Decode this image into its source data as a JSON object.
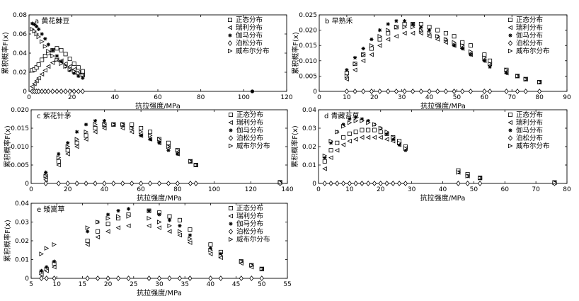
{
  "chart_data": [
    {
      "type": "scatter",
      "panel": "a",
      "title": "黄花棘豆",
      "xlabel": "抗拉强度/MPa",
      "ylabel": "累积概率F(x)",
      "xlim": [
        0,
        120
      ],
      "ylim": [
        0,
        0.08
      ],
      "xticks": [
        "0",
        "20",
        "40",
        "60",
        "80",
        "100",
        "120"
      ],
      "yticks": [
        "0",
        "0.02",
        "0.04",
        "0.06",
        "0.08"
      ],
      "x": [
        1.5,
        2.5,
        3.5,
        4.5,
        6,
        7.5,
        9,
        11,
        13,
        15,
        17,
        19,
        21,
        23,
        25
      ],
      "series": [
        {
          "name": "正态分布",
          "marker": "square",
          "values": [
            0.022,
            0.023,
            0.025,
            0.028,
            0.033,
            0.037,
            0.04,
            0.043,
            0.045,
            0.043,
            0.039,
            0.034,
            0.029,
            0.025,
            0.021
          ]
        },
        {
          "name": "瑞利分布",
          "marker": "triangle-left",
          "values": [
            0.005,
            0.008,
            0.011,
            0.014,
            0.018,
            0.022,
            0.026,
            0.03,
            0.033,
            0.032,
            0.029,
            0.026,
            0.023,
            0.02,
            0.017
          ]
        },
        {
          "name": "伽马分布",
          "marker": "star",
          "values": [
            0.071,
            0.07,
            0.068,
            0.065,
            0.06,
            0.055,
            0.049,
            0.043,
            0.037,
            0.031,
            0.026,
            0.022,
            0.019,
            0.016,
            0.014
          ]
        },
        {
          "name": "泊松分布",
          "marker": "diamond",
          "values": [
            0,
            0,
            0,
            0,
            0,
            0,
            0,
            0,
            0,
            0,
            0,
            0,
            0,
            0,
            0
          ]
        },
        {
          "name": "威布尔分布",
          "marker": "triangle-right",
          "values": [
            0.065,
            0.063,
            0.06,
            0.057,
            0.052,
            0.047,
            0.042,
            0.037,
            0.033,
            0.029,
            0.026,
            0.023,
            0.021,
            0.019,
            0.017
          ]
        }
      ],
      "extra_points": [
        {
          "x": 104,
          "y": 0
        }
      ],
      "legend_position": "right"
    },
    {
      "type": "scatter",
      "panel": "b",
      "title": "早熟禾",
      "xlabel": "抗拉强度/MPa",
      "ylabel": "累积概率F(x)",
      "xlim": [
        0,
        90
      ],
      "ylim": [
        0,
        0.025
      ],
      "xticks": [
        "0",
        "10",
        "20",
        "30",
        "40",
        "50",
        "60",
        "70",
        "80",
        "90"
      ],
      "yticks": [
        "0",
        "0.005",
        "0.010",
        "0.015",
        "0.020",
        "0.025"
      ],
      "x": [
        10,
        13,
        16,
        19,
        22,
        25,
        28,
        31,
        34,
        37,
        40,
        43,
        46,
        49,
        52,
        55,
        60,
        62,
        68,
        72,
        75,
        80
      ],
      "series": [
        {
          "name": "正态分布",
          "marker": "square",
          "values": [
            0.006,
            0.009,
            0.012,
            0.014,
            0.017,
            0.019,
            0.021,
            0.022,
            0.022,
            0.022,
            0.021,
            0.02,
            0.019,
            0.018,
            0.016,
            0.015,
            0.012,
            0.01,
            0.007,
            0.005,
            0.004,
            0.003
          ]
        },
        {
          "name": "瑞利分布",
          "marker": "triangle-left",
          "values": [
            0.004,
            0.007,
            0.01,
            0.012,
            0.015,
            0.017,
            0.018,
            0.019,
            0.019,
            0.019,
            0.018,
            0.017,
            0.016,
            0.015,
            0.014,
            0.012,
            0.01,
            0.009,
            0.006,
            0.005,
            0.004,
            0.003
          ]
        },
        {
          "name": "伽马分布",
          "marker": "star",
          "values": [
            0.007,
            0.011,
            0.014,
            0.017,
            0.02,
            0.022,
            0.023,
            0.023,
            0.022,
            0.021,
            0.02,
            0.018,
            0.017,
            0.015,
            0.014,
            0.012,
            0.01,
            0.008,
            0.006,
            0.005,
            0.004,
            0.003
          ]
        },
        {
          "name": "泊松分布",
          "marker": "diamond",
          "values": [
            0,
            0,
            0,
            0,
            0,
            0,
            0,
            0,
            0,
            0,
            0,
            0,
            0,
            0,
            0,
            0,
            0,
            0,
            0,
            0,
            0,
            0
          ]
        },
        {
          "name": "威布尔分布",
          "marker": "triangle-right",
          "values": [
            0.005,
            0.009,
            0.012,
            0.015,
            0.018,
            0.02,
            0.021,
            0.021,
            0.021,
            0.02,
            0.019,
            0.018,
            0.017,
            0.016,
            0.015,
            0.013,
            0.011,
            0.009,
            0.007,
            0.005,
            0.004,
            0.003
          ]
        }
      ],
      "legend_position": "right"
    },
    {
      "type": "scatter",
      "panel": "c",
      "title": "紫花针茅",
      "xlabel": "抗拉强度/MPa",
      "ylabel": "累积概率F(x)",
      "xlim": [
        0,
        140
      ],
      "ylim": [
        0,
        0.02
      ],
      "xticks": [
        "0",
        "20",
        "40",
        "60",
        "80",
        "100",
        "120",
        "140"
      ],
      "yticks": [
        "0",
        "0.005",
        "0.010",
        "0.015",
        "0.020"
      ],
      "x": [
        8,
        15,
        20,
        25,
        30,
        35,
        40,
        45,
        50,
        55,
        60,
        65,
        70,
        75,
        80,
        87,
        90,
        136
      ],
      "series": [
        {
          "name": "正态分布",
          "marker": "square",
          "values": [
            0.002,
            0.006,
            0.009,
            0.011,
            0.013,
            0.015,
            0.016,
            0.016,
            0.016,
            0.016,
            0.015,
            0.014,
            0.012,
            0.011,
            0.009,
            0.006,
            0.005,
            0.0003
          ]
        },
        {
          "name": "瑞利分布",
          "marker": "triangle-left",
          "values": [
            0.001,
            0.005,
            0.008,
            0.01,
            0.012,
            0.014,
            0.015,
            0.016,
            0.015,
            0.014,
            0.013,
            0.012,
            0.011,
            0.01,
            0.008,
            0.006,
            0.005,
            0.0003
          ]
        },
        {
          "name": "伽马分布",
          "marker": "star",
          "values": [
            0.003,
            0.008,
            0.011,
            0.014,
            0.016,
            0.017,
            0.017,
            0.016,
            0.016,
            0.015,
            0.013,
            0.012,
            0.011,
            0.009,
            0.008,
            0.006,
            0.005,
            0.0003
          ]
        },
        {
          "name": "泊松分布",
          "marker": "diamond",
          "values": [
            0,
            0,
            0,
            0,
            0,
            0,
            0,
            0,
            0,
            0,
            0,
            0,
            0,
            0,
            0,
            0,
            0,
            0
          ]
        },
        {
          "name": "威布尔分布",
          "marker": "triangle-right",
          "values": [
            0.002,
            0.007,
            0.01,
            0.012,
            0.014,
            0.016,
            0.016,
            0.016,
            0.016,
            0.015,
            0.014,
            0.013,
            0.012,
            0.01,
            0.009,
            0.006,
            0.005,
            0.0003
          ]
        }
      ],
      "legend_position": "right"
    },
    {
      "type": "scatter",
      "panel": "d",
      "title": "青藏苔草",
      "xlabel": "抗拉强度/MPa",
      "ylabel": "累积概率F(x)",
      "xlim": [
        0,
        80
      ],
      "ylim": [
        0,
        0.04
      ],
      "xticks": [
        "0",
        "10",
        "20",
        "30",
        "40",
        "50",
        "60",
        "70",
        "80"
      ],
      "yticks": [
        "0",
        "0.01",
        "0.02",
        "0.03",
        "0.04"
      ],
      "x": [
        2,
        4,
        6,
        8,
        10,
        12,
        14,
        16,
        18,
        20,
        22,
        24,
        26,
        28,
        45,
        48,
        52,
        76
      ],
      "series": [
        {
          "name": "正态分布",
          "marker": "square",
          "values": [
            0.012,
            0.018,
            0.022,
            0.025,
            0.027,
            0.028,
            0.029,
            0.029,
            0.029,
            0.028,
            0.027,
            0.025,
            0.023,
            0.02,
            0.007,
            0.005,
            0.003,
            0.0005
          ]
        },
        {
          "name": "瑞利分布",
          "marker": "triangle-left",
          "values": [
            0.008,
            0.014,
            0.018,
            0.021,
            0.023,
            0.024,
            0.025,
            0.025,
            0.025,
            0.025,
            0.024,
            0.023,
            0.021,
            0.019,
            0.006,
            0.004,
            0.003,
            0.0005
          ]
        },
        {
          "name": "伽马分布",
          "marker": "star",
          "values": [
            0.014,
            0.022,
            0.028,
            0.032,
            0.035,
            0.036,
            0.035,
            0.034,
            0.032,
            0.03,
            0.027,
            0.024,
            0.021,
            0.018,
            0.006,
            0.004,
            0.003,
            0.0005
          ]
        },
        {
          "name": "泊松分布",
          "marker": "diamond",
          "values": [
            0,
            0,
            0,
            0,
            0,
            0,
            0,
            0,
            0,
            0,
            0,
            0,
            0,
            0,
            0,
            0,
            0,
            0
          ]
        },
        {
          "name": "威布尔分布",
          "marker": "triangle-right",
          "values": [
            0.015,
            0.023,
            0.028,
            0.031,
            0.033,
            0.034,
            0.034,
            0.033,
            0.032,
            0.03,
            0.028,
            0.025,
            0.022,
            0.019,
            0.006,
            0.004,
            0.003,
            0.0005
          ]
        }
      ],
      "legend_position": "right"
    },
    {
      "type": "scatter",
      "panel": "e",
      "title": "矮嵩草",
      "xlabel": "抗拉强度/MPa",
      "ylabel": "累积概率F(x)",
      "xlim": [
        5,
        55
      ],
      "ylim": [
        0,
        0.04
      ],
      "xticks": [
        "5",
        "10",
        "15",
        "20",
        "25",
        "30",
        "35",
        "40",
        "45",
        "50",
        "55"
      ],
      "yticks": [
        "0",
        "0.01",
        "0.02",
        "0.03",
        "0.04"
      ],
      "x": [
        7,
        8,
        9.5,
        16,
        18,
        20,
        22,
        24,
        28,
        30,
        32,
        34,
        36,
        40,
        42,
        46,
        48,
        50
      ],
      "series": [
        {
          "name": "正态分布",
          "marker": "square",
          "values": [
            0.003,
            0.005,
            0.008,
            0.02,
            0.025,
            0.029,
            0.032,
            0.034,
            0.036,
            0.035,
            0.033,
            0.031,
            0.026,
            0.018,
            0.014,
            0.009,
            0.007,
            0.005
          ]
        },
        {
          "name": "瑞利分布",
          "marker": "triangle-left",
          "values": [
            0.002,
            0.004,
            0.006,
            0.018,
            0.022,
            0.025,
            0.027,
            0.028,
            0.028,
            0.027,
            0.025,
            0.023,
            0.019,
            0.013,
            0.011,
            0.008,
            0.006,
            0.005
          ]
        },
        {
          "name": "伽马分布",
          "marker": "star",
          "values": [
            0.004,
            0.006,
            0.009,
            0.025,
            0.03,
            0.034,
            0.036,
            0.037,
            0.036,
            0.034,
            0.031,
            0.028,
            0.023,
            0.016,
            0.013,
            0.009,
            0.007,
            0.005
          ]
        },
        {
          "name": "泊松分布",
          "marker": "diamond",
          "values": [
            0,
            0,
            0,
            0,
            0,
            0,
            0,
            0,
            0,
            0,
            0,
            0,
            0,
            0,
            0,
            0,
            0,
            0
          ]
        },
        {
          "name": "威布尔分布",
          "marker": "triangle-right",
          "values": [
            0.013,
            0.016,
            0.018,
            0.027,
            0.03,
            0.032,
            0.033,
            0.033,
            0.032,
            0.03,
            0.028,
            0.025,
            0.021,
            0.015,
            0.012,
            0.009,
            0.007,
            0.005
          ]
        }
      ],
      "legend_position": "right"
    }
  ]
}
